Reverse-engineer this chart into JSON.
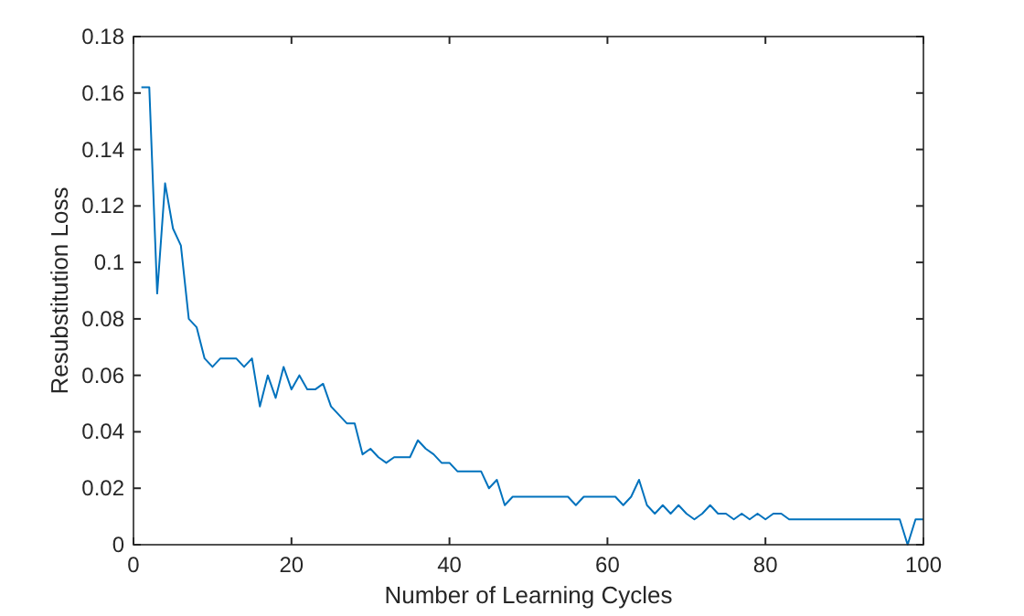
{
  "chart_data": {
    "type": "line",
    "xlabel": "Number of Learning Cycles",
    "ylabel": "Resubstitution Loss",
    "x": [
      1,
      2,
      3,
      4,
      5,
      6,
      7,
      8,
      9,
      10,
      11,
      12,
      13,
      14,
      15,
      16,
      17,
      18,
      19,
      20,
      21,
      22,
      23,
      24,
      25,
      26,
      27,
      28,
      29,
      30,
      31,
      32,
      33,
      34,
      35,
      36,
      37,
      38,
      39,
      40,
      41,
      42,
      43,
      44,
      45,
      46,
      47,
      48,
      49,
      50,
      51,
      52,
      53,
      54,
      55,
      56,
      57,
      58,
      59,
      60,
      61,
      62,
      63,
      64,
      65,
      66,
      67,
      68,
      69,
      70,
      71,
      72,
      73,
      74,
      75,
      76,
      77,
      78,
      79,
      80,
      81,
      82,
      83,
      84,
      85,
      86,
      87,
      88,
      89,
      90,
      91,
      92,
      93,
      94,
      95,
      96,
      97,
      98,
      99,
      100
    ],
    "series": [
      {
        "color": "#0072bd",
        "values": [
          0.162,
          0.162,
          0.089,
          0.128,
          0.112,
          0.106,
          0.08,
          0.077,
          0.066,
          0.063,
          0.066,
          0.066,
          0.066,
          0.063,
          0.066,
          0.049,
          0.06,
          0.052,
          0.063,
          0.055,
          0.06,
          0.055,
          0.055,
          0.057,
          0.049,
          0.046,
          0.043,
          0.043,
          0.032,
          0.034,
          0.031,
          0.029,
          0.031,
          0.031,
          0.031,
          0.037,
          0.034,
          0.032,
          0.029,
          0.029,
          0.026,
          0.026,
          0.026,
          0.026,
          0.02,
          0.023,
          0.014,
          0.017,
          0.017,
          0.017,
          0.017,
          0.017,
          0.017,
          0.017,
          0.017,
          0.014,
          0.017,
          0.017,
          0.017,
          0.017,
          0.017,
          0.014,
          0.017,
          0.023,
          0.014,
          0.011,
          0.014,
          0.011,
          0.014,
          0.011,
          0.009,
          0.011,
          0.014,
          0.011,
          0.011,
          0.009,
          0.011,
          0.009,
          0.011,
          0.009,
          0.011,
          0.011,
          0.009,
          0.009,
          0.009,
          0.009,
          0.009,
          0.009,
          0.009,
          0.009,
          0.009,
          0.009,
          0.009,
          0.009,
          0.009,
          0.009,
          0.009,
          0,
          0.009,
          0.009
        ]
      }
    ],
    "xlim": [
      0,
      100
    ],
    "xticks": [
      0,
      20,
      40,
      60,
      80,
      100
    ],
    "ylim": [
      0,
      0.18
    ],
    "yticks": [
      0,
      {
        "value": 0.02,
        "label": "0.02"
      },
      {
        "value": 0.04,
        "label": "0.04"
      },
      {
        "value": 0.06,
        "label": "0.06"
      },
      {
        "value": 0.08,
        "label": "0.08"
      },
      {
        "value": 0.1,
        "label": "0.1"
      },
      {
        "value": 0.12,
        "label": "0.12"
      },
      {
        "value": 0.14,
        "label": "0.14"
      },
      {
        "value": 0.16,
        "label": "0.16"
      },
      {
        "value": 0.18,
        "label": "0.18"
      }
    ],
    "grid": false,
    "marker": "none",
    "line_style": "solid"
  }
}
